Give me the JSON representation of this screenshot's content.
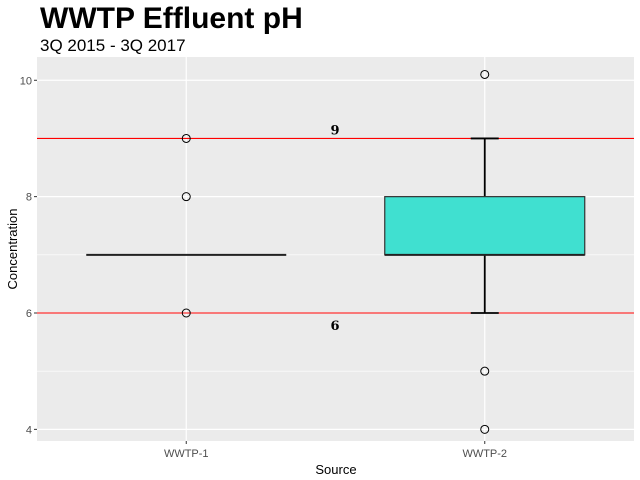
{
  "chart_data": {
    "type": "boxplot",
    "title": "WWTP Effluent pH",
    "subtitle": "3Q 2015 - 3Q 2017",
    "xlabel": "Source",
    "ylabel": "Concentration",
    "ylim": [
      3.8,
      10.4
    ],
    "yticks": [
      4,
      6,
      8,
      10
    ],
    "categories": [
      "WWTP-1",
      "WWTP-2"
    ],
    "boxes": [
      {
        "category": "WWTP-1",
        "lower_whisker": 7,
        "q1": 7,
        "median": 7,
        "q3": 7,
        "upper_whisker": 7,
        "outliers": [
          9,
          8,
          6
        ],
        "fill": "#ffffff"
      },
      {
        "category": "WWTP-2",
        "lower_whisker": 6,
        "q1": 7,
        "median": 7,
        "q3": 8,
        "upper_whisker": 9,
        "outliers": [
          10.1,
          5,
          4
        ],
        "fill": "#40e0d0"
      }
    ],
    "reference_lines": [
      {
        "value": 9,
        "label": "9",
        "color": "#ff0000"
      },
      {
        "value": 6,
        "label": "6",
        "color": "#ff0000"
      }
    ],
    "grid": true,
    "panel_background": "#ebebeb",
    "grid_color": "#ffffff"
  }
}
